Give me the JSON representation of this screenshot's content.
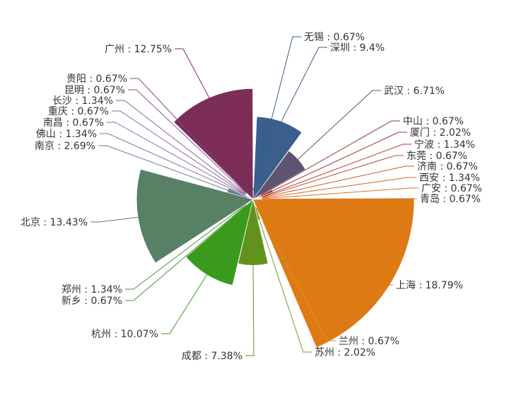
{
  "chart_data": {
    "type": "pie",
    "variant": "nightingale-radius",
    "title": "",
    "legend": "none",
    "label_separator": " : ",
    "slices": [
      {
        "name": "无锡",
        "value": 0.67,
        "label": "无锡 : 0.67%",
        "color": "#2f5d87"
      },
      {
        "name": "深圳",
        "value": 9.4,
        "label": "深圳 : 9.4%",
        "color": "#3a5f8e"
      },
      {
        "name": "武汉",
        "value": 6.71,
        "label": "武汉 : 6.71%",
        "color": "#5e5470"
      },
      {
        "name": "中山",
        "value": 0.67,
        "label": "中山 : 0.67%",
        "color": "#8b3a3a"
      },
      {
        "name": "厦门",
        "value": 2.02,
        "label": "厦门 : 2.02%",
        "color": "#a83232"
      },
      {
        "name": "宁波",
        "value": 1.34,
        "label": "宁波 : 1.34%",
        "color": "#b73a2a"
      },
      {
        "name": "东莞",
        "value": 0.67,
        "label": "东莞 : 0.67%",
        "color": "#c4452a"
      },
      {
        "name": "济南",
        "value": 0.67,
        "label": "济南 : 0.67%",
        "color": "#d0542a"
      },
      {
        "name": "西安",
        "value": 1.34,
        "label": "西安 : 1.34%",
        "color": "#d8602a"
      },
      {
        "name": "广安",
        "value": 0.67,
        "label": "广安 : 0.67%",
        "color": "#df6b22"
      },
      {
        "name": "青岛",
        "value": 0.67,
        "label": "青岛 : 0.67%",
        "color": "#e3701c"
      },
      {
        "name": "上海",
        "value": 18.79,
        "label": "上海 : 18.79%",
        "color": "#de7a14"
      },
      {
        "name": "兰州",
        "value": 0.67,
        "label": "兰州 : 0.67%",
        "color": "#c99a2c"
      },
      {
        "name": "苏州",
        "value": 2.02,
        "label": "苏州 : 2.02%",
        "color": "#7c9a26"
      },
      {
        "name": "成都",
        "value": 7.38,
        "label": "成都 : 7.38%",
        "color": "#61921e"
      },
      {
        "name": "杭州",
        "value": 10.07,
        "label": "杭州 : 10.07%",
        "color": "#3a9a1e"
      },
      {
        "name": "新乡",
        "value": 0.67,
        "label": "新乡 : 0.67%",
        "color": "#4e9434"
      },
      {
        "name": "郑州",
        "value": 1.34,
        "label": "郑州 : 1.34%",
        "color": "#568d48"
      },
      {
        "name": "北京",
        "value": 13.43,
        "label": "北京 : 13.43%",
        "color": "#578065"
      },
      {
        "name": "南京",
        "value": 2.69,
        "label": "南京 : 2.69%",
        "color": "#6f7a8e"
      },
      {
        "name": "佛山",
        "value": 1.34,
        "label": "佛山 : 1.34%",
        "color": "#7c78a4"
      },
      {
        "name": "南昌",
        "value": 0.67,
        "label": "南昌 : 0.67%",
        "color": "#8672a6"
      },
      {
        "name": "重庆",
        "value": 0.67,
        "label": "重庆 : 0.67%",
        "color": "#8d68a2"
      },
      {
        "name": "长沙",
        "value": 1.34,
        "label": "长沙 : 1.34%",
        "color": "#915e9a"
      },
      {
        "name": "昆明",
        "value": 0.67,
        "label": "昆明 : 0.67%",
        "color": "#8f528c"
      },
      {
        "name": "贵阳",
        "value": 0.67,
        "label": "贵阳 : 0.67%",
        "color": "#88467c"
      },
      {
        "name": "广州",
        "value": 12.75,
        "label": "广州 : 12.75%",
        "color": "#7b2d58"
      }
    ]
  }
}
